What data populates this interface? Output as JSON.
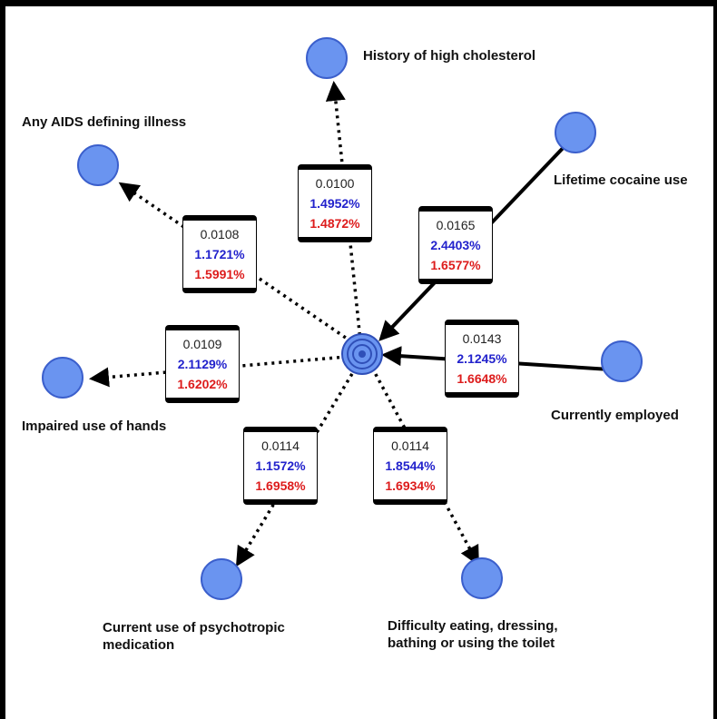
{
  "colors": {
    "node_fill": "#6a94f0",
    "node_border": "#3b5fcc",
    "blue_value": "#2222cc",
    "red_value": "#dd1c1c"
  },
  "center_icon": "concentric-target-icon",
  "nodes": [
    {
      "id": "cholesterol",
      "label": "History of high cholesterol",
      "edge_style": "dotted",
      "direction": "outgoing",
      "weight": "0.0100",
      "blue": "1.4952%",
      "red": "1.4872%"
    },
    {
      "id": "aids",
      "label": "Any AIDS defining illness",
      "edge_style": "dotted",
      "direction": "outgoing",
      "weight": "0.0108",
      "blue": "1.1721%",
      "red": "1.5991%"
    },
    {
      "id": "cocaine",
      "label": "Lifetime cocaine use",
      "edge_style": "solid",
      "direction": "incoming",
      "weight": "0.0165",
      "blue": "2.4403%",
      "red": "1.6577%"
    },
    {
      "id": "employed",
      "label": "Currently employed",
      "edge_style": "solid",
      "direction": "incoming",
      "weight": "0.0143",
      "blue": "2.1245%",
      "red": "1.6648%"
    },
    {
      "id": "hands",
      "label": "Impaired use of hands",
      "edge_style": "dotted",
      "direction": "outgoing",
      "weight": "0.0109",
      "blue": "2.1129%",
      "red": "1.6202%"
    },
    {
      "id": "psychotropic",
      "label_lines": [
        "Current use of psychotropic",
        "medication"
      ],
      "edge_style": "dotted",
      "direction": "outgoing",
      "weight": "0.0114",
      "blue": "1.1572%",
      "red": "1.6958%"
    },
    {
      "id": "eating",
      "label_lines": [
        "Difficulty eating, dressing,",
        "bathing or using the toilet"
      ],
      "edge_style": "dotted",
      "direction": "outgoing",
      "weight": "0.0114",
      "blue": "1.8544%",
      "red": "1.6934%"
    }
  ]
}
